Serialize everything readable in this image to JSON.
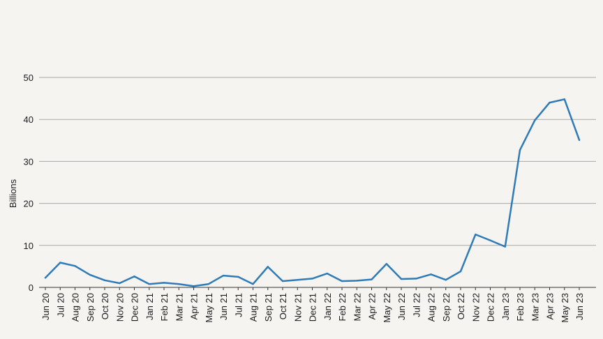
{
  "chart_data": {
    "type": "line",
    "title": "",
    "xlabel": "",
    "ylabel": "Billions",
    "ylim": [
      0,
      50
    ],
    "yticks": [
      0,
      10,
      20,
      30,
      40,
      50
    ],
    "grid": "horizontal",
    "legend": "none",
    "colors": {
      "line": "#2f7bb8",
      "grid": "#a9a9a9",
      "axis": "#333333"
    },
    "categories": [
      "Jun 20",
      "Jul 20",
      "Aug 20",
      "Sep 20",
      "Oct 20",
      "Nov 20",
      "Dec 20",
      "Jan 21",
      "Feb 21",
      "Mar 21",
      "Apr 21",
      "May 21",
      "Jun 21",
      "Jul 21",
      "Aug 21",
      "Sep 21",
      "Oct 21",
      "Nov 21",
      "Dec 21",
      "Jan 22",
      "Feb 22",
      "Mar 22",
      "Apr 22",
      "May 22",
      "Jun 22",
      "Jul 22",
      "Aug 22",
      "Sep 22",
      "Oct 22",
      "Nov 22",
      "Dec 22",
      "Jan 23",
      "Feb 23",
      "Mar 23",
      "Apr 23",
      "May 23",
      "Jun 23"
    ],
    "series": [
      {
        "values": [
          2.3,
          5.9,
          5.1,
          3.0,
          1.7,
          1.0,
          2.6,
          0.8,
          1.1,
          0.8,
          0.3,
          0.8,
          2.8,
          2.5,
          0.8,
          4.9,
          1.5,
          1.8,
          2.1,
          3.3,
          1.5,
          1.6,
          1.9,
          5.6,
          2.0,
          2.1,
          3.1,
          1.8,
          3.8,
          12.6,
          11.2,
          9.7,
          32.7,
          39.8,
          44.0,
          44.8,
          35.1
        ]
      }
    ]
  }
}
